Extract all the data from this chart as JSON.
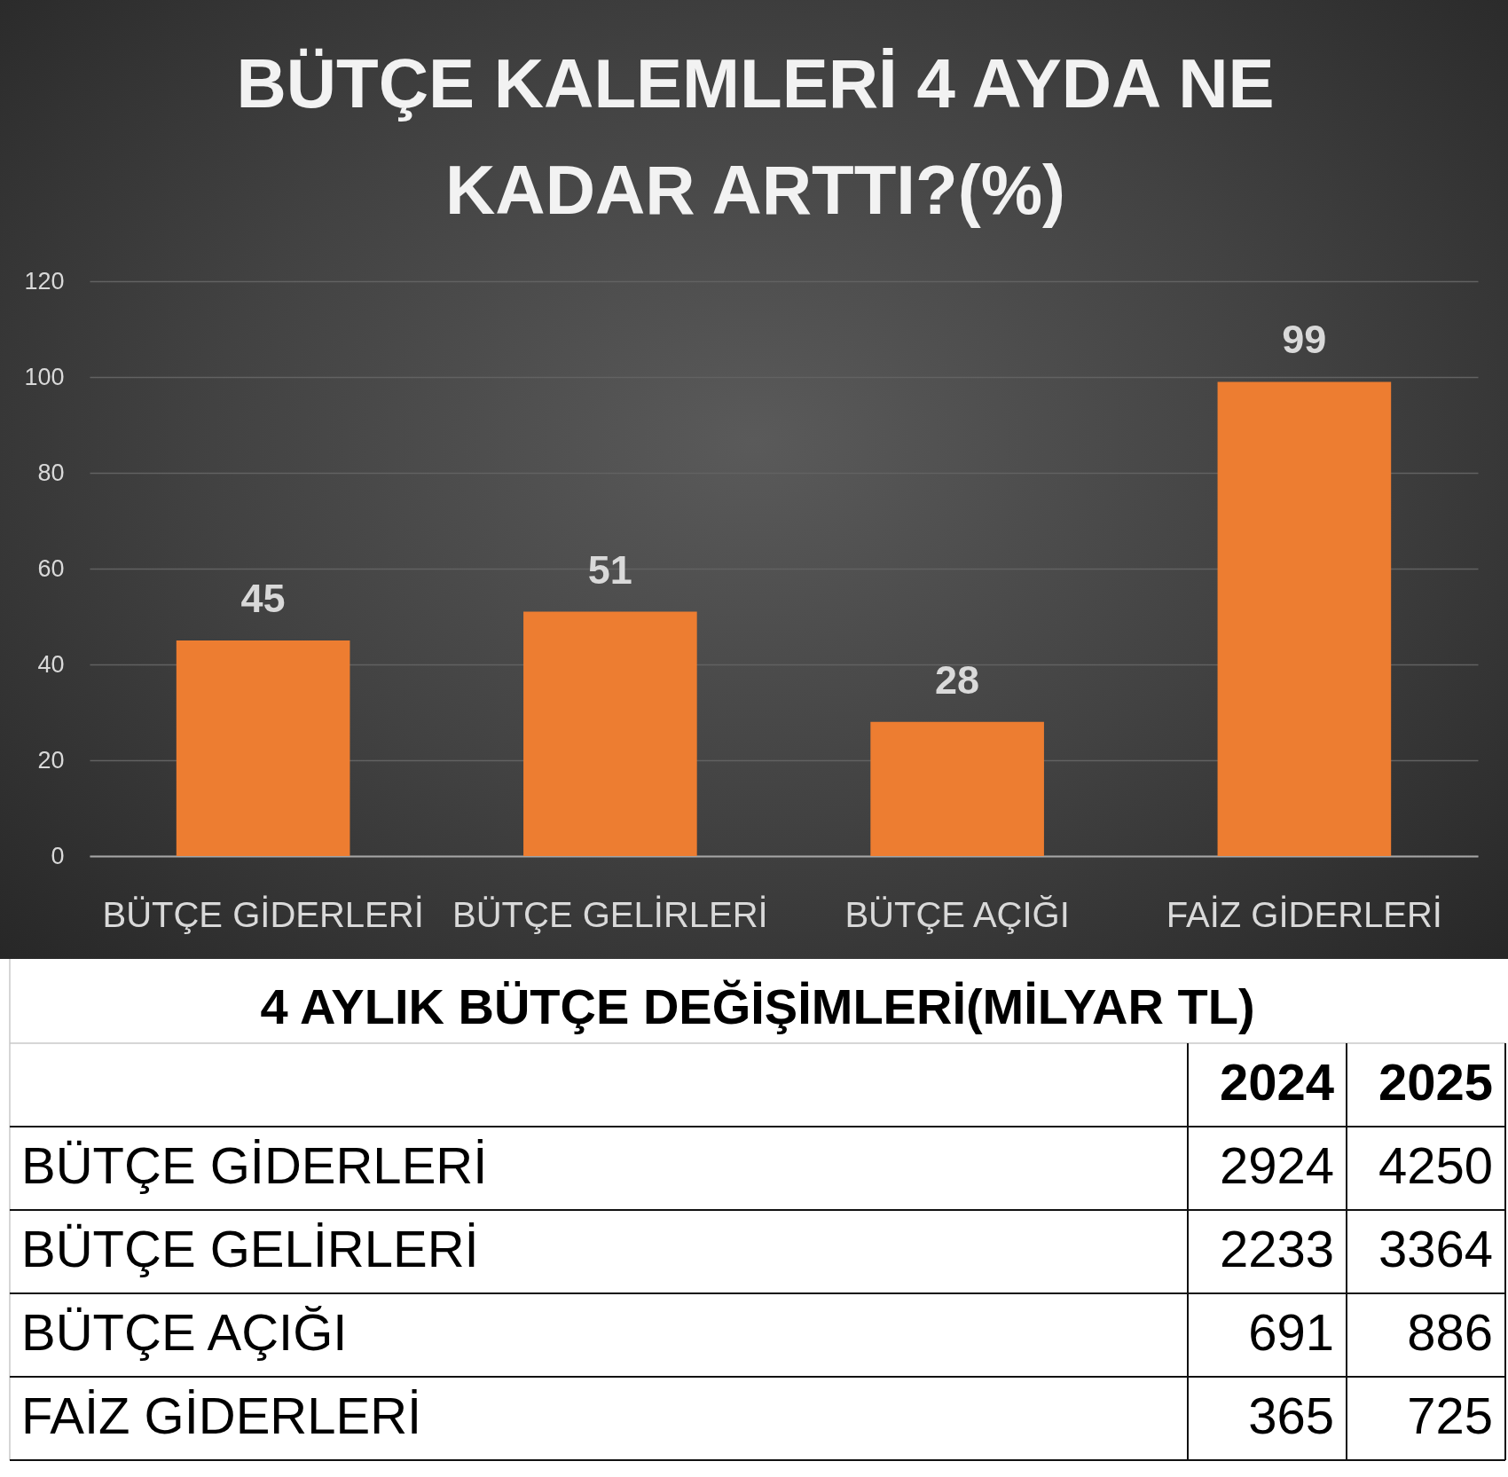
{
  "chart_data": [
    {
      "type": "bar",
      "title": "BÜTÇE KALEMLERİ 4 AYDA NE KADAR ARTTI?(%)",
      "categories": [
        "BÜTÇE GİDERLERİ",
        "BÜTÇE GELİRLERİ",
        "BÜTÇE AÇIĞI",
        "FAİZ GİDERLERİ"
      ],
      "values": [
        45,
        51,
        28,
        99
      ],
      "color": "#ed7d31",
      "ylim": [
        0,
        120
      ],
      "yticks": [
        0,
        20,
        40,
        60,
        80,
        100,
        120
      ],
      "grid": "y",
      "data_labels": true
    },
    {
      "type": "other",
      "title": "4 AYLIK BÜTÇE DEĞİŞİMLERİ(MİLYAR TL)",
      "categories": [
        "BÜTÇE GİDERLERİ",
        "BÜTÇE GELİRLERİ",
        "BÜTÇE AÇIĞI",
        "FAİZ GİDERLERİ"
      ],
      "series": [
        {
          "name": "2024",
          "values": [
            2924,
            2233,
            691,
            365
          ]
        },
        {
          "name": "2025",
          "values": [
            4250,
            3364,
            886,
            725
          ]
        }
      ],
      "data_labels": true
    }
  ]
}
